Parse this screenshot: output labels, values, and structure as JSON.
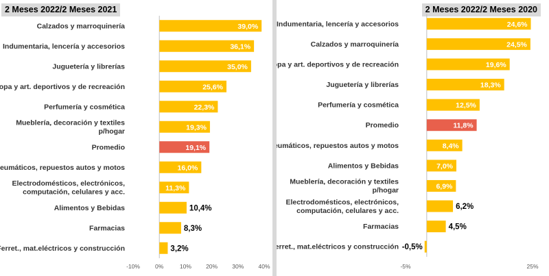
{
  "colors": {
    "bar": "#ffc000",
    "highlight": "#e8604c",
    "axis": "#bfbfbf"
  },
  "chart_data": [
    {
      "type": "bar",
      "orientation": "horizontal",
      "title": "2 Meses 2022/2 Meses 2021",
      "categories": [
        "Calzados y marroquinería",
        "Indumentaria, lencería y accesorios",
        "Juguetería y librerías",
        "Ropa y art. deportivos y de recreación",
        "Perfumería y cosmética",
        "Mueblería, decoración y textiles p/hogar",
        "Promedio",
        "Neumáticos, repuestos autos y motos",
        "Electrodomésticos, electrónicos, computación, celulares y acc.",
        "Alimentos y Bebidas",
        "Farmacias",
        "Ferret., mat.eléctricos y construcción"
      ],
      "values": [
        39.0,
        36.1,
        35.0,
        25.6,
        22.3,
        19.3,
        19.1,
        16.0,
        11.3,
        10.4,
        8.3,
        3.2
      ],
      "value_labels": [
        "39,0%",
        "36,1%",
        "35,0%",
        "25,6%",
        "22,3%",
        "19,3%",
        "19,1%",
        "16,0%",
        "11,3%",
        "10,4%",
        "8,3%",
        "3,2%"
      ],
      "highlight_category": "Promedio",
      "xlim": [
        -10,
        40
      ],
      "xticks": [
        -10,
        0,
        10,
        20,
        30,
        40
      ],
      "xtick_labels": [
        "-10%",
        "0%",
        "10%",
        "20%",
        "30%",
        "40%"
      ]
    },
    {
      "type": "bar",
      "orientation": "horizontal",
      "title": "2 Meses 2022/2 Meses 2020",
      "categories": [
        "Indumentaria, lencería y accesorios",
        "Calzados y marroquinería",
        "Ropa y art. deportivos y de recreación",
        "Juguetería y librerías",
        "Perfumería y cosmética",
        "Promedio",
        "Neumáticos, repuestos autos y motos",
        "Alimentos y Bebidas",
        "Mueblería, decoración y textiles p/hogar",
        "Electrodomésticos, electrónicos, computación, celulares y acc.",
        "Farmacias",
        "Ferret., mat.eléctricos y construcción"
      ],
      "values": [
        24.6,
        24.5,
        19.6,
        18.3,
        12.5,
        11.8,
        8.4,
        7.0,
        6.9,
        6.2,
        4.5,
        -0.5
      ],
      "value_labels": [
        "24,6%",
        "24,5%",
        "19,6%",
        "18,3%",
        "12,5%",
        "11,8%",
        "8,4%",
        "7,0%",
        "6,9%",
        "6,2%",
        "4,5%",
        "-0,5%"
      ],
      "highlight_category": "Promedio",
      "xlim": [
        -5,
        25
      ],
      "xticks": [
        -5,
        25
      ],
      "xtick_labels": [
        "-5%",
        "25%"
      ]
    }
  ]
}
